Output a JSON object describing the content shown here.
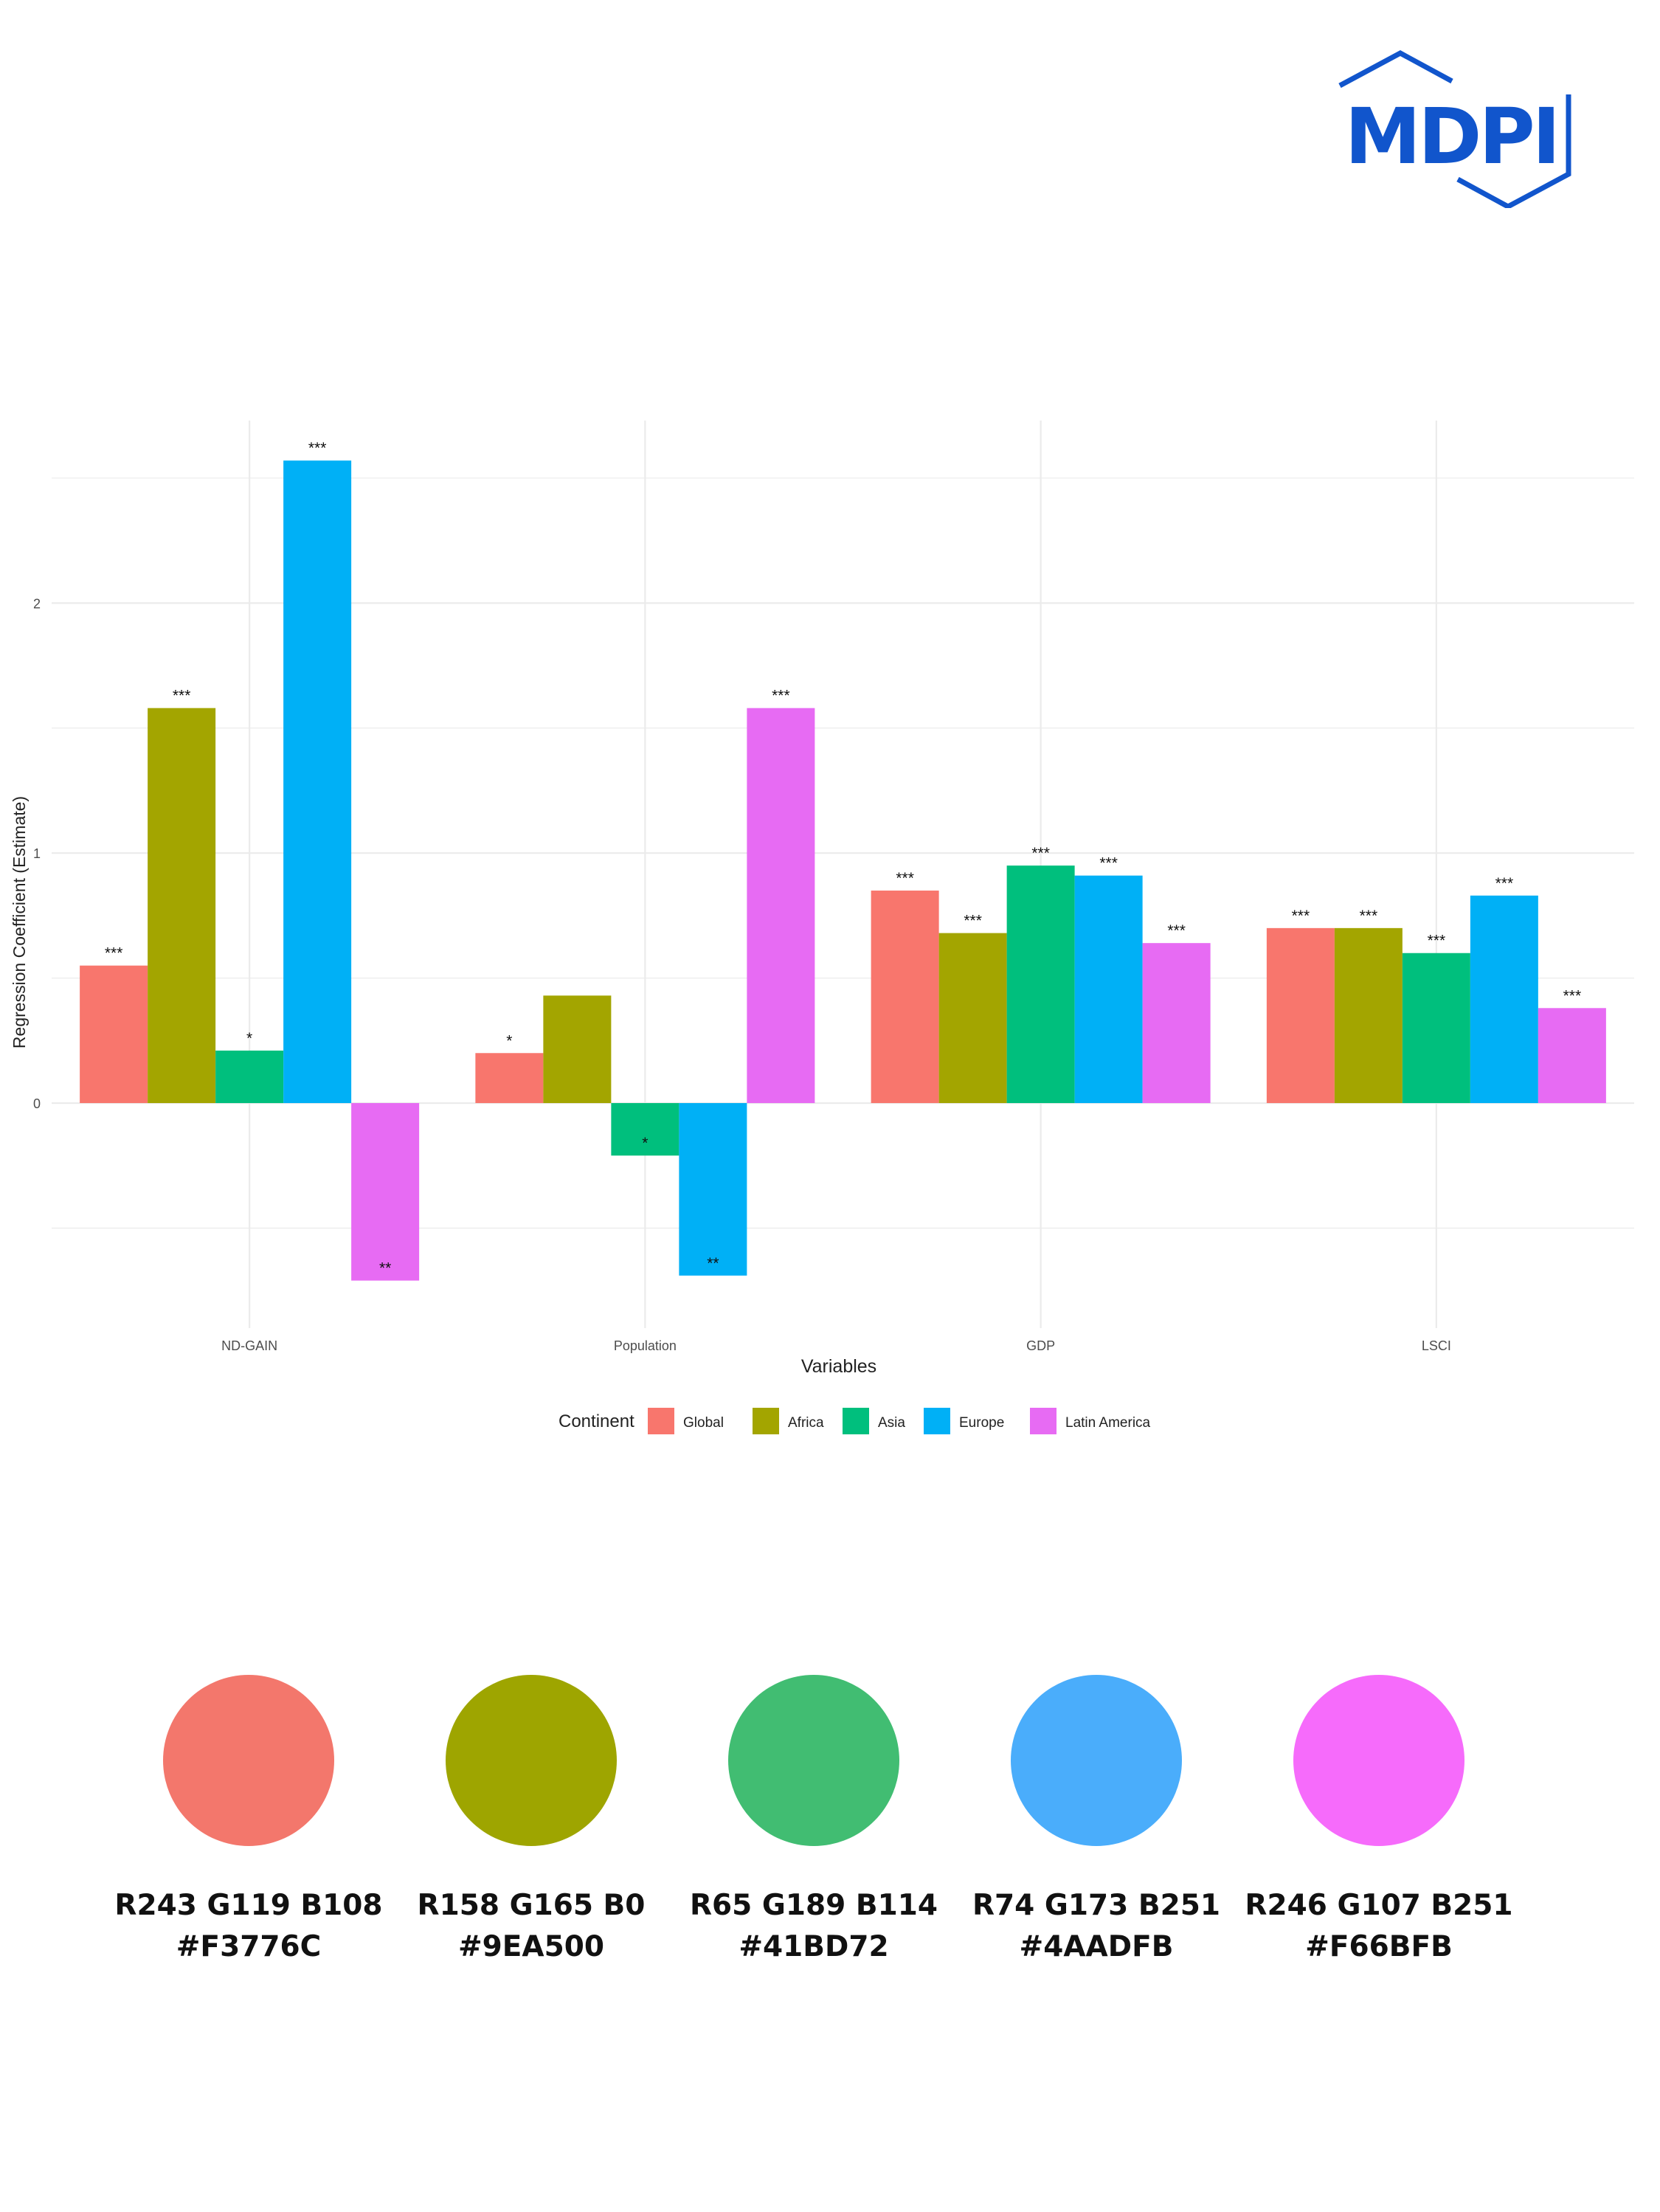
{
  "logo": {
    "text": "MDPI",
    "color": "#1155cc"
  },
  "chart_data": {
    "type": "bar",
    "title": "",
    "xlabel": "Variables",
    "ylabel": "Regression Coefficient (Estimate)",
    "ylim": [
      -0.9,
      2.73
    ],
    "yticks": [
      0,
      1,
      2
    ],
    "categories": [
      "ND-GAIN",
      "Population",
      "GDP",
      "LSCI"
    ],
    "legend_title": "Continent",
    "legend_position": "bottom",
    "series": [
      {
        "name": "Global",
        "color": "#F8766D",
        "values": [
          0.55,
          0.2,
          0.85,
          0.7
        ],
        "labels": [
          "***",
          "*",
          "***",
          "***"
        ]
      },
      {
        "name": "Africa",
        "color": "#A3A500",
        "values": [
          1.58,
          0.43,
          0.68,
          0.7
        ],
        "labels": [
          "***",
          "",
          "***",
          "***"
        ]
      },
      {
        "name": "Asia",
        "color": "#00BF7D",
        "values": [
          0.21,
          -0.21,
          0.95,
          0.6
        ],
        "labels": [
          "*",
          "*",
          "***",
          "***"
        ]
      },
      {
        "name": "Europe",
        "color": "#00B0F6",
        "values": [
          2.57,
          -0.69,
          0.91,
          0.83
        ],
        "labels": [
          "***",
          "**",
          "***",
          "***"
        ]
      },
      {
        "name": "Latin America",
        "color": "#E76BF3",
        "values": [
          -0.71,
          1.58,
          0.64,
          0.38
        ],
        "labels": [
          "**",
          "***",
          "***",
          "***"
        ]
      }
    ]
  },
  "swatches": [
    {
      "color": "#F3776C",
      "rgb": "R243 G119 B108",
      "hex": "#F3776C"
    },
    {
      "color": "#9EA500",
      "rgb": "R158 G165 B0",
      "hex": "#9EA500"
    },
    {
      "color": "#41BD72",
      "rgb": "R65 G189 B114",
      "hex": "#41BD72"
    },
    {
      "color": "#4AADFB",
      "rgb": "R74 G173 B251",
      "hex": "#4AADFB"
    },
    {
      "color": "#F66BFB",
      "rgb": "R246 G107 B251",
      "hex": "#F66BFB"
    }
  ]
}
